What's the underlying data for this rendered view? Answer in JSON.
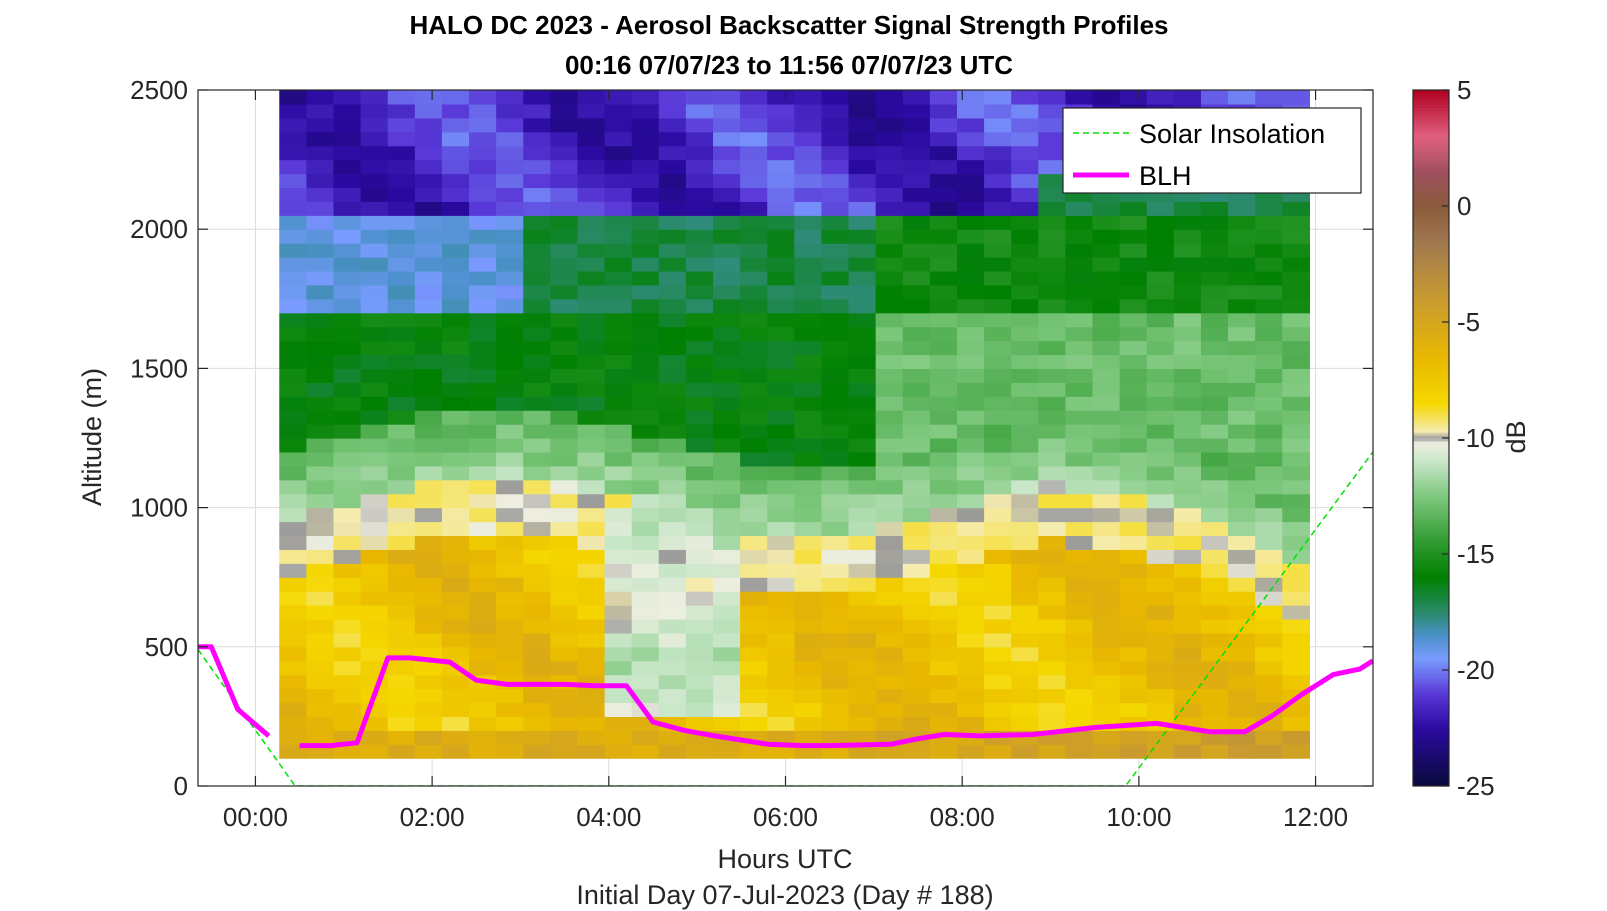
{
  "chart_data": {
    "type": "heatmap",
    "title": "HALO DC 2023 - Aerosol Backscatter Signal Strength Profiles",
    "subtitle": "00:16 07/07/23 to 11:56 07/07/23  UTC",
    "xlabel": "Hours UTC",
    "ylabel": "Altitude (m)",
    "footer": "Initial Day 07-Jul-2023 (Day # 188)",
    "xlim": [
      -0.65,
      12.65
    ],
    "ylim": [
      0,
      2500
    ],
    "x_ticks": [
      0,
      2,
      4,
      6,
      8,
      10,
      12
    ],
    "x_tick_labels": [
      "00:00",
      "02:00",
      "04:00",
      "06:00",
      "08:00",
      "10:00",
      "12:00"
    ],
    "y_ticks": [
      0,
      500,
      1000,
      1500,
      2000,
      2500
    ],
    "y_tick_labels": [
      "0",
      "500",
      "1000",
      "1500",
      "2000",
      "2500"
    ],
    "grid": true,
    "legend_position": "top-right",
    "heatmap": {
      "x_start": 0.27,
      "x_end": 11.93,
      "y_start": 100,
      "y_end": 2500,
      "time_bins": 38,
      "alt_bins": 48,
      "values_db_range": [
        -22,
        -6
      ]
    },
    "colorbar": {
      "label": "dB",
      "min": -25,
      "max": 5,
      "ticks": [
        5,
        0,
        -5,
        -10,
        -15,
        -20,
        -25
      ],
      "tick_labels": [
        "5",
        "0",
        "-5",
        "-10",
        "-15",
        "-20",
        "-25"
      ],
      "colormap": [
        {
          "v": -25,
          "c": "#0a0a3a"
        },
        {
          "v": -22.5,
          "c": "#2a0aa0"
        },
        {
          "v": -21,
          "c": "#5a3ad8"
        },
        {
          "v": -19.5,
          "c": "#7a9cff"
        },
        {
          "v": -18.5,
          "c": "#4a90c8"
        },
        {
          "v": -17.5,
          "c": "#2a8a6a"
        },
        {
          "v": -16,
          "c": "#008000"
        },
        {
          "v": -14.5,
          "c": "#2f9a2f"
        },
        {
          "v": -12.5,
          "c": "#7ec87e"
        },
        {
          "v": -11,
          "c": "#c8e6c8"
        },
        {
          "v": -10.2,
          "c": "#eeeee0"
        },
        {
          "v": -10,
          "c": "#9a9a9a"
        },
        {
          "v": -9.7,
          "c": "#f5ecb0"
        },
        {
          "v": -8.5,
          "c": "#f5d800"
        },
        {
          "v": -6.5,
          "c": "#e8b800"
        },
        {
          "v": -4,
          "c": "#c89a30"
        },
        {
          "v": -1.5,
          "c": "#a07850"
        },
        {
          "v": 0,
          "c": "#8a5a3a"
        },
        {
          "v": 1.5,
          "c": "#a05060"
        },
        {
          "v": 3,
          "c": "#e06080"
        },
        {
          "v": 5,
          "c": "#b00020"
        }
      ]
    },
    "series": [
      {
        "name": "Solar Insolation",
        "style": "dashed",
        "color": "#00e000",
        "x": [
          -0.65,
          0.45,
          1.0,
          2.0,
          4.0,
          6.0,
          8.0,
          9.85,
          12.65
        ],
        "y": [
          490,
          0,
          0,
          0,
          0,
          0,
          0,
          0,
          1200
        ]
      },
      {
        "name": "BLH",
        "style": "solid",
        "color": "#ff00ff",
        "segments": [
          {
            "x": [
              -0.65,
              -0.5,
              -0.2,
              0.15
            ],
            "y": [
              500,
              500,
              275,
              180
            ]
          },
          {
            "x": [
              0.5,
              0.85,
              1.15,
              1.5,
              1.75,
              2.2,
              2.5,
              2.85,
              3.5,
              3.85,
              4.2,
              4.5,
              4.85,
              5.2,
              5.8,
              6.2,
              6.5,
              7.2,
              7.5,
              7.8,
              8.2,
              8.8,
              9.5,
              10.2,
              10.8,
              11.2,
              11.5,
              11.85,
              12.2,
              12.5,
              12.65
            ],
            "y": [
              145,
              145,
              155,
              460,
              460,
              445,
              380,
              365,
              365,
              360,
              360,
              230,
              200,
              180,
              150,
              145,
              145,
              150,
              170,
              185,
              180,
              185,
              210,
              225,
              195,
              195,
              250,
              330,
              400,
              420,
              450
            ]
          }
        ]
      }
    ]
  }
}
